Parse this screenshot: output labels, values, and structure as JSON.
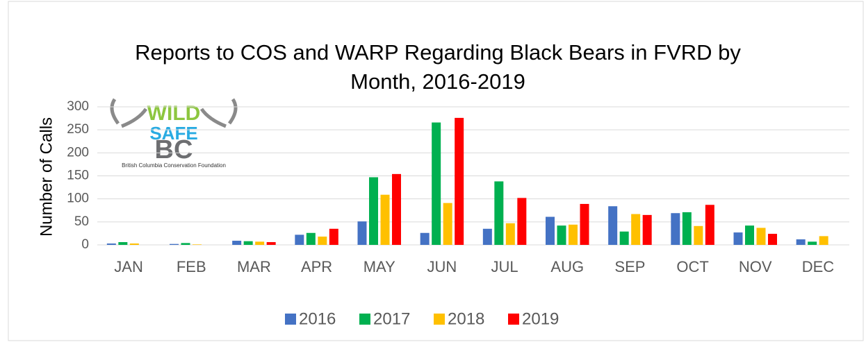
{
  "chart_data": {
    "type": "bar",
    "title": "Reports to COS and WARP Regarding Black Bears in FVRD by Month, 2016-2019",
    "y_label": "Number of Calls",
    "categories": [
      "JAN",
      "FEB",
      "MAR",
      "APR",
      "MAY",
      "JUN",
      "JUL",
      "AUG",
      "SEP",
      "OCT",
      "NOV",
      "DEC"
    ],
    "series": [
      {
        "name": "2016",
        "color": "#4472c4",
        "values": [
          3,
          2,
          9,
          22,
          51,
          26,
          35,
          61,
          84,
          69,
          27,
          12
        ]
      },
      {
        "name": "2017",
        "color": "#00b050",
        "values": [
          6,
          4,
          8,
          26,
          147,
          266,
          138,
          42,
          29,
          71,
          42,
          7
        ]
      },
      {
        "name": "2018",
        "color": "#ffc000",
        "values": [
          3,
          1,
          7,
          18,
          109,
          91,
          47,
          44,
          67,
          41,
          37,
          19
        ]
      },
      {
        "name": "2019",
        "color": "#ff0000",
        "values": [
          0,
          0,
          6,
          35,
          154,
          276,
          102,
          89,
          65,
          87,
          24,
          0
        ]
      }
    ],
    "ylim": [
      0,
      300
    ],
    "yticks": [
      0,
      50,
      100,
      150,
      200,
      250,
      300
    ],
    "grid": true,
    "legend": "bottom",
    "logo_texts": [
      "WILD",
      "SAFE",
      "BC",
      "British Columbia Conservation Foundation"
    ]
  }
}
